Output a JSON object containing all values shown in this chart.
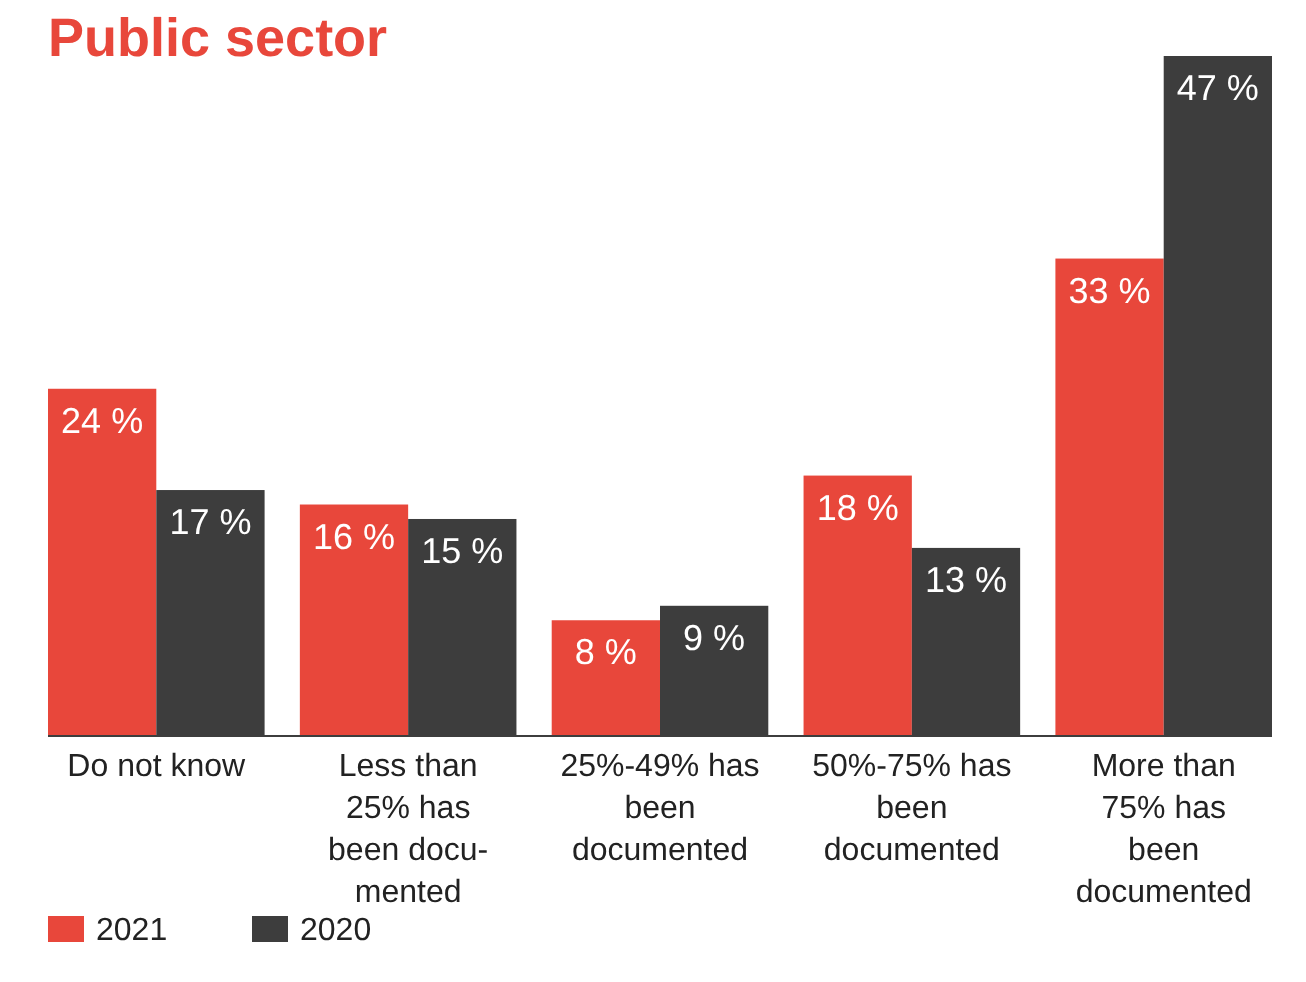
{
  "chart_data": {
    "type": "bar",
    "title": "Public sector",
    "categories": [
      "Do not know",
      "Less than\n25% has\nbeen docu-\nmented",
      "25%-49% has\nbeen\ndocumented",
      "50%-75% has\nbeen\ndocumented",
      "More than\n75% has\nbeen\ndocumented"
    ],
    "series": [
      {
        "name": "2021",
        "color": "#e8473b",
        "values": [
          24,
          16,
          8,
          18,
          33
        ],
        "value_labels": [
          "24 %",
          "16 %",
          "8 %",
          "18 %",
          "33 %"
        ]
      },
      {
        "name": "2020",
        "color": "#3d3d3d",
        "values": [
          17,
          15,
          9,
          13,
          47
        ],
        "value_labels": [
          "17 %",
          "15 %",
          "9 %",
          "13 %",
          "47 %"
        ]
      }
    ],
    "legend": "bottom left"
  }
}
